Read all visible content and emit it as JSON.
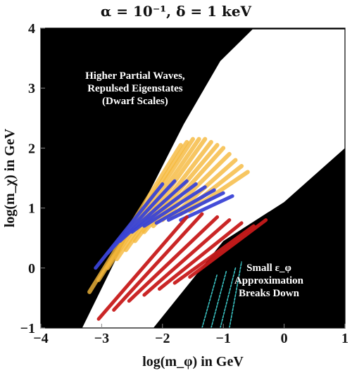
{
  "chart_data": {
    "type": "region",
    "title": "α = 10⁻¹,  δ = 1 keV",
    "xlabel": "log(m_φ) in GeV",
    "ylabel": "log(m_χ) in GeV",
    "xlim": [
      -4,
      1
    ],
    "ylim": [
      -1,
      4
    ],
    "x_ticks": [
      "−4",
      "−3",
      "−2",
      "−1",
      "0",
      "1"
    ],
    "y_ticks": [
      "−1",
      "0",
      "1",
      "2",
      "3",
      "4"
    ],
    "grid": false,
    "annotations": [
      {
        "lines": [
          "Higher Partial Waves,",
          "Repulsed Eigenstates",
          "(Dwarf Scales)"
        ],
        "x": -2.45,
        "y": 3.0,
        "color": "#ffffff"
      },
      {
        "lines": [
          "Small ε_φ",
          "Approximation",
          "Breaks Down"
        ],
        "x": -0.25,
        "y": -0.2,
        "color": "#ffffff"
      }
    ],
    "white_region_boundary": [
      [
        -3.32,
        -1.0
      ],
      [
        -2.4,
        0.9
      ],
      [
        -1.65,
        2.4
      ],
      [
        -1.05,
        3.45
      ],
      [
        -0.52,
        3.98
      ],
      [
        1.0,
        3.98
      ],
      [
        1.0,
        2.0
      ],
      [
        0.0,
        1.1
      ],
      [
        -1.0,
        0.45
      ],
      [
        -2.15,
        -1.0
      ]
    ],
    "series": [
      {
        "color": "#f6b93b",
        "ridges": [
          [
            -3.2,
            -0.4,
            -1.7,
            2.05
          ],
          [
            -3.05,
            -0.2,
            -1.6,
            2.1
          ],
          [
            -2.9,
            0.0,
            -1.5,
            2.15
          ],
          [
            -2.75,
            0.15,
            -1.4,
            2.15
          ],
          [
            -2.6,
            0.3,
            -1.3,
            2.15
          ],
          [
            -2.45,
            0.45,
            -1.2,
            2.1
          ],
          [
            -2.3,
            0.6,
            -1.1,
            2.05
          ],
          [
            -2.15,
            0.7,
            -1.0,
            2.0
          ],
          [
            -2.0,
            0.8,
            -0.9,
            1.9
          ],
          [
            -1.85,
            0.85,
            -0.8,
            1.8
          ],
          [
            -1.7,
            0.9,
            -0.7,
            1.7
          ],
          [
            -1.55,
            0.95,
            -0.6,
            1.6
          ]
        ]
      },
      {
        "color": "#3a44d6",
        "ridges": [
          [
            -3.1,
            0.0,
            -2.0,
            1.4
          ],
          [
            -2.9,
            0.25,
            -1.8,
            1.45
          ],
          [
            -2.7,
            0.45,
            -1.6,
            1.45
          ],
          [
            -2.5,
            0.6,
            -1.45,
            1.4
          ],
          [
            -2.3,
            0.7,
            -1.3,
            1.35
          ],
          [
            -2.1,
            0.75,
            -1.15,
            1.3
          ],
          [
            -1.9,
            0.8,
            -1.0,
            1.25
          ],
          [
            -1.7,
            0.8,
            -0.85,
            1.2
          ]
        ]
      },
      {
        "color": "#c81b1b",
        "ridges": [
          [
            -3.05,
            -0.85,
            -1.6,
            0.85
          ],
          [
            -2.8,
            -0.7,
            -1.35,
            0.9
          ],
          [
            -2.55,
            -0.55,
            -1.1,
            0.85
          ],
          [
            -2.3,
            -0.45,
            -0.9,
            0.8
          ],
          [
            -2.05,
            -0.35,
            -0.7,
            0.75
          ],
          [
            -1.8,
            -0.25,
            -0.5,
            0.7
          ],
          [
            -1.55,
            -0.15,
            -0.3,
            0.8
          ]
        ]
      },
      {
        "color": "#3fd0d0",
        "ridges": [
          [
            -1.35,
            -1.0,
            -1.1,
            -0.1
          ],
          [
            -1.2,
            -1.0,
            -0.95,
            -0.05
          ],
          [
            -1.05,
            -1.0,
            -0.8,
            0.0
          ],
          [
            -0.9,
            -1.0,
            -0.7,
            0.1
          ]
        ]
      }
    ]
  }
}
